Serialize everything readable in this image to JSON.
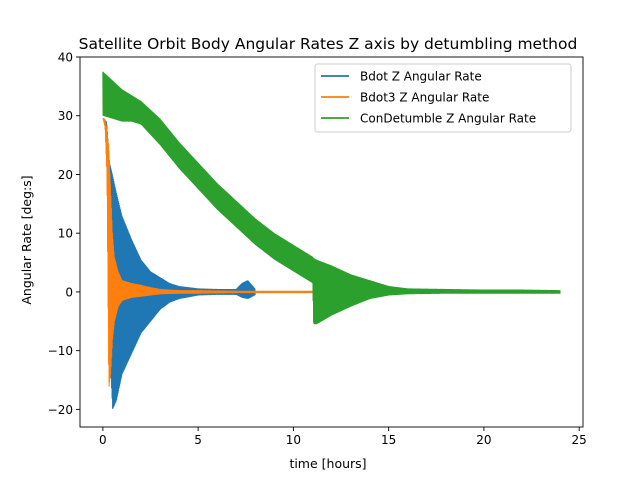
{
  "chart_data": {
    "type": "line",
    "title": "Satellite Orbit Body Angular Rates Z axis by detumbling method",
    "xlabel": "time [hours]",
    "ylabel": "Angular Rate [deg:s]",
    "xlim": [
      -1.2,
      25.2
    ],
    "ylim": [
      -23.0,
      40.0
    ],
    "xticks": [
      0,
      5,
      10,
      15,
      20,
      25
    ],
    "yticks": [
      -20,
      -10,
      0,
      10,
      20,
      30,
      40
    ],
    "xtick_labels": [
      "0",
      "5",
      "10",
      "15",
      "20",
      "25"
    ],
    "ytick_labels": [
      "−20",
      "−10",
      "0",
      "10",
      "20",
      "30",
      "40"
    ],
    "grid": false,
    "legend_position": "top-right",
    "series": [
      {
        "name": "Bdot Z Angular Rate",
        "color": "#1f77b4",
        "note": "oscillating signal; values describe upper/lower envelope",
        "x": [
          0.0,
          0.2,
          0.35,
          0.5,
          0.7,
          1.0,
          1.5,
          2.0,
          2.5,
          3.0,
          3.5,
          4.0,
          5.0,
          6.0,
          7.0,
          7.3,
          7.6,
          8.0
        ],
        "upper": [
          29.5,
          29.0,
          22.0,
          20.0,
          17.0,
          13.0,
          9.0,
          5.5,
          3.5,
          2.5,
          1.5,
          1.0,
          0.6,
          0.5,
          0.5,
          1.5,
          2.0,
          0.5
        ],
        "lower": [
          29.5,
          28.0,
          -10.0,
          -20.0,
          -18.5,
          -14.0,
          -10.5,
          -7.0,
          -5.0,
          -3.0,
          -1.8,
          -1.2,
          -0.6,
          -0.5,
          -0.5,
          -1.0,
          -1.2,
          -0.5
        ]
      },
      {
        "name": "Bdot3 Z Angular Rate",
        "color": "#ff7f0e",
        "note": "oscillating signal; values describe upper/lower envelope",
        "x": [
          0.0,
          0.1,
          0.2,
          0.3,
          0.4,
          0.5,
          0.6,
          0.8,
          1.0,
          1.5,
          2.0,
          2.5,
          3.0,
          4.0,
          5.0,
          7.0,
          10.0,
          11.0
        ],
        "upper": [
          29.5,
          29.5,
          28.0,
          25.0,
          18.0,
          10.0,
          6.0,
          3.5,
          2.0,
          1.5,
          1.2,
          0.8,
          0.5,
          0.3,
          0.3,
          0.2,
          0.2,
          0.2
        ],
        "lower": [
          29.5,
          28.0,
          20.0,
          -16.5,
          -14.0,
          -8.0,
          -5.0,
          -2.5,
          -1.5,
          -1.0,
          -0.8,
          -0.6,
          -0.4,
          -0.3,
          -0.3,
          -0.2,
          -0.2,
          -0.2
        ]
      },
      {
        "name": "ConDetumble Z Angular Rate",
        "color": "#2ca02c",
        "note": "oscillating signal; values describe upper/lower envelope",
        "x": [
          0.0,
          0.5,
          1.0,
          1.5,
          2.0,
          3.0,
          4.0,
          5.0,
          6.0,
          7.0,
          8.0,
          9.0,
          10.0,
          11.0,
          11.05,
          11.2,
          12.0,
          13.0,
          14.0,
          15.0,
          16.0,
          18.0,
          20.0,
          22.0,
          24.0
        ],
        "upper": [
          37.5,
          36.0,
          34.5,
          33.5,
          32.5,
          29.5,
          25.5,
          22.0,
          18.5,
          15.5,
          12.5,
          10.0,
          8.0,
          6.0,
          5.8,
          5.5,
          4.5,
          3.0,
          2.0,
          1.0,
          0.6,
          0.5,
          0.4,
          0.4,
          0.3
        ],
        "lower": [
          30.0,
          29.5,
          29.0,
          29.0,
          28.5,
          25.0,
          21.0,
          17.5,
          14.0,
          11.0,
          8.0,
          5.5,
          3.5,
          1.5,
          -5.5,
          -5.5,
          -4.0,
          -2.5,
          -1.2,
          -0.6,
          -0.4,
          -0.3,
          -0.3,
          -0.3,
          -0.3
        ]
      }
    ]
  }
}
